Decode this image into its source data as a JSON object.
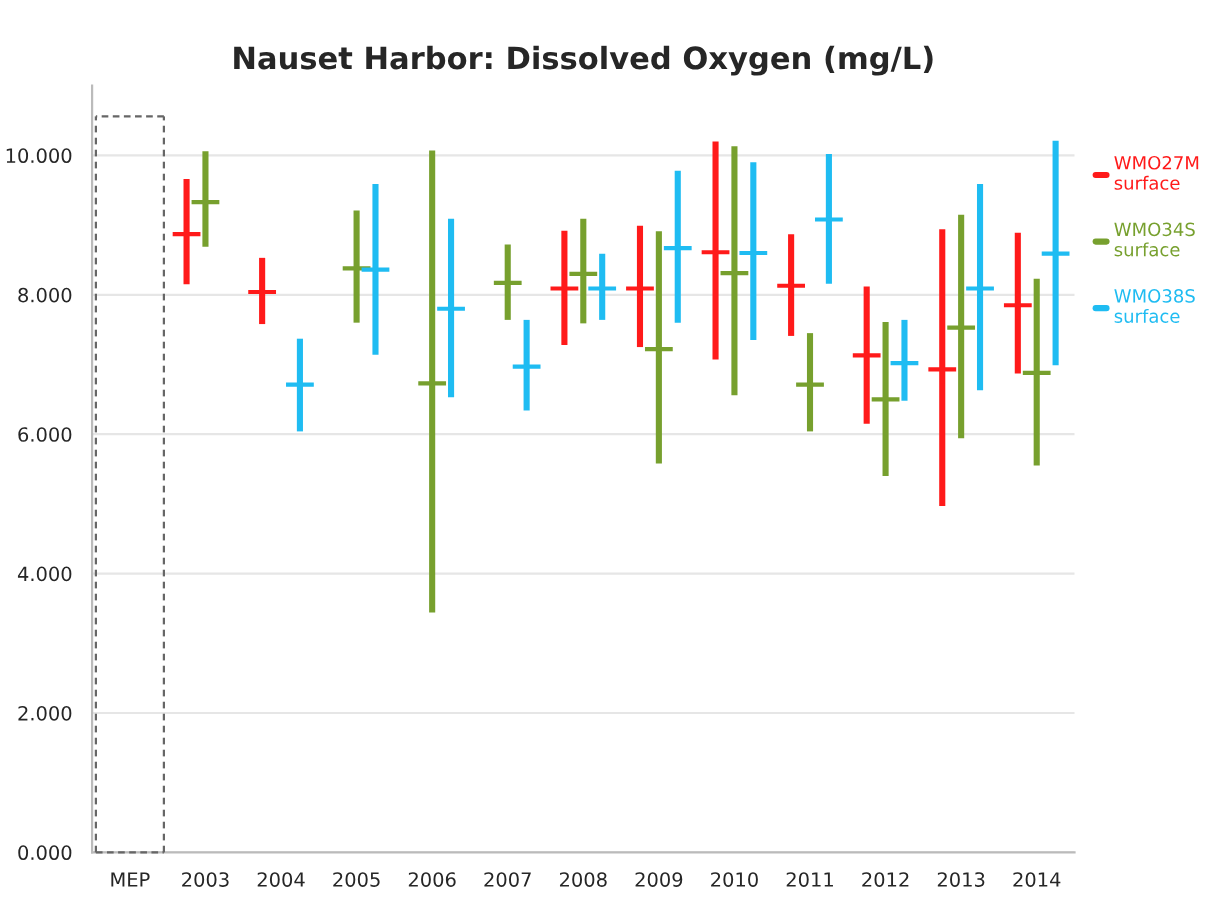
{
  "chart_data": {
    "type": "scatter",
    "title": "Nauset Harbor: Dissolved Oxygen (mg/L)",
    "categories": [
      "MEP",
      "2003",
      "2004",
      "2005",
      "2006",
      "2007",
      "2008",
      "2009",
      "2010",
      "2011",
      "2012",
      "2013",
      "2014"
    ],
    "series": [
      {
        "name": "WMO27M surface",
        "color": "#ff1a1a",
        "values": [
          null,
          8.87,
          8.04,
          null,
          null,
          null,
          8.09,
          8.09,
          8.61,
          8.13,
          7.13,
          6.93,
          7.85
        ],
        "errors": [
          null,
          [
            8.15,
            9.66
          ],
          [
            7.58,
            8.53
          ],
          null,
          null,
          null,
          [
            7.28,
            8.92
          ],
          [
            7.25,
            8.99
          ],
          [
            7.07,
            10.2
          ],
          [
            7.41,
            8.87
          ],
          [
            6.15,
            8.12
          ],
          [
            4.97,
            8.94
          ],
          [
            6.87,
            8.89
          ]
        ]
      },
      {
        "name": "WMO34S surface",
        "color": "#77a02e",
        "values": [
          null,
          9.33,
          null,
          8.38,
          6.73,
          8.17,
          8.3,
          7.22,
          8.31,
          6.71,
          6.5,
          7.53,
          6.88
        ],
        "errors": [
          null,
          [
            8.69,
            10.06
          ],
          null,
          [
            7.6,
            9.21
          ],
          [
            3.44,
            10.07
          ],
          [
            7.64,
            8.72
          ],
          [
            7.59,
            9.09
          ],
          [
            5.58,
            8.91
          ],
          [
            6.56,
            10.13
          ],
          [
            6.04,
            7.45
          ],
          [
            5.4,
            7.61
          ],
          [
            5.94,
            9.15
          ],
          [
            5.55,
            8.23
          ]
        ]
      },
      {
        "name": "WMO38S surface",
        "color": "#1fbcf2",
        "values": [
          null,
          null,
          6.71,
          8.36,
          7.8,
          6.97,
          8.09,
          8.67,
          8.6,
          9.08,
          7.02,
          8.09,
          8.59
        ],
        "errors": [
          null,
          null,
          [
            6.04,
            7.37
          ],
          [
            7.14,
            9.59
          ],
          [
            6.53,
            9.09
          ],
          [
            6.34,
            7.64
          ],
          [
            7.64,
            8.59
          ],
          [
            7.6,
            9.78
          ],
          [
            7.35,
            9.9
          ],
          [
            8.16,
            10.02
          ],
          [
            6.48,
            7.64
          ],
          [
            6.63,
            9.59
          ],
          [
            6.99,
            10.21
          ]
        ]
      }
    ],
    "ylim": [
      0,
      11
    ],
    "yticks": [
      {
        "value": 0,
        "label": "0.000"
      },
      {
        "value": 2,
        "label": "2.000"
      },
      {
        "value": 4,
        "label": "4.000"
      },
      {
        "value": 6,
        "label": "6.000"
      },
      {
        "value": 8,
        "label": "8.000"
      },
      {
        "value": 10,
        "label": "10.000"
      }
    ],
    "grid": "y",
    "legend": "right",
    "marker": "cross"
  }
}
